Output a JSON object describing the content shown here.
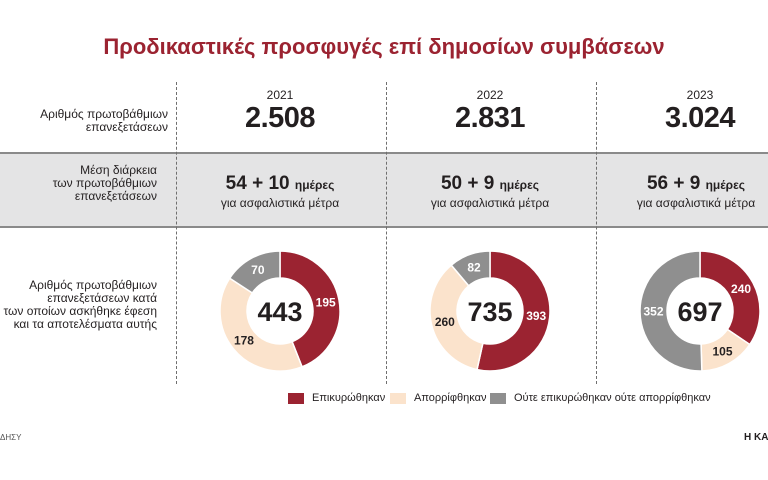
{
  "title": "Προδικαστικές προσφυγές επί δημοσίων συμβάσεων",
  "rows": {
    "count_label": "Αριθμός πρωτοβάθμιων\nεπανεξετάσεων",
    "duration_label": "Μέση διάρκεια\nτων πρωτοβάθμιων\nεπανεξετάσεων",
    "donut_label": "Αριθμός πρωτοβάθμιων\nεπανεξετάσεων κατά\nτων οποίων ασκήθηκε έφεση\nκαι τα αποτελέσματα αυτής"
  },
  "years": [
    {
      "year": "2021",
      "count": "2.508",
      "duration_main": "54 + 10",
      "duration_unit": "ημέρες",
      "duration_sub": "για ασφαλιστικά μέτρα"
    },
    {
      "year": "2022",
      "count": "2.831",
      "duration_main": "50 + 9",
      "duration_unit": "ημέρες",
      "duration_sub": "για ασφαλιστικά μέτρα"
    },
    {
      "year": "2023",
      "count": "3.024",
      "duration_main": "56 + 9",
      "duration_unit": "ημέρες",
      "duration_sub": "για ασφαλιστικά μέτρα"
    }
  ],
  "legend": [
    {
      "label": "Επικυρώθηκαν",
      "color": "#9b2331"
    },
    {
      "label": "Απορρίφθηκαν",
      "color": "#fbe3cc"
    },
    {
      "label": "Ούτε επικυρώθηκαν ούτε απορρίφθηκαν",
      "color": "#8f8f8f"
    }
  ],
  "chart_data": {
    "type": "pie",
    "variant": "donut",
    "categories": [
      "2021",
      "2022",
      "2023"
    ],
    "series": [
      {
        "name": "Επικυρώθηκαν",
        "values": [
          195,
          393,
          240
        ]
      },
      {
        "name": "Απορρίφθηκαν",
        "values": [
          178,
          260,
          105
        ]
      },
      {
        "name": "Ούτε επικυρώθηκαν ούτε απορρίφθηκαν",
        "values": [
          70,
          82,
          352
        ]
      }
    ],
    "totals": [
      "443",
      "735",
      "697"
    ]
  },
  "source": "ΔΗΣΥ",
  "brand": "Η ΚΑΘ"
}
